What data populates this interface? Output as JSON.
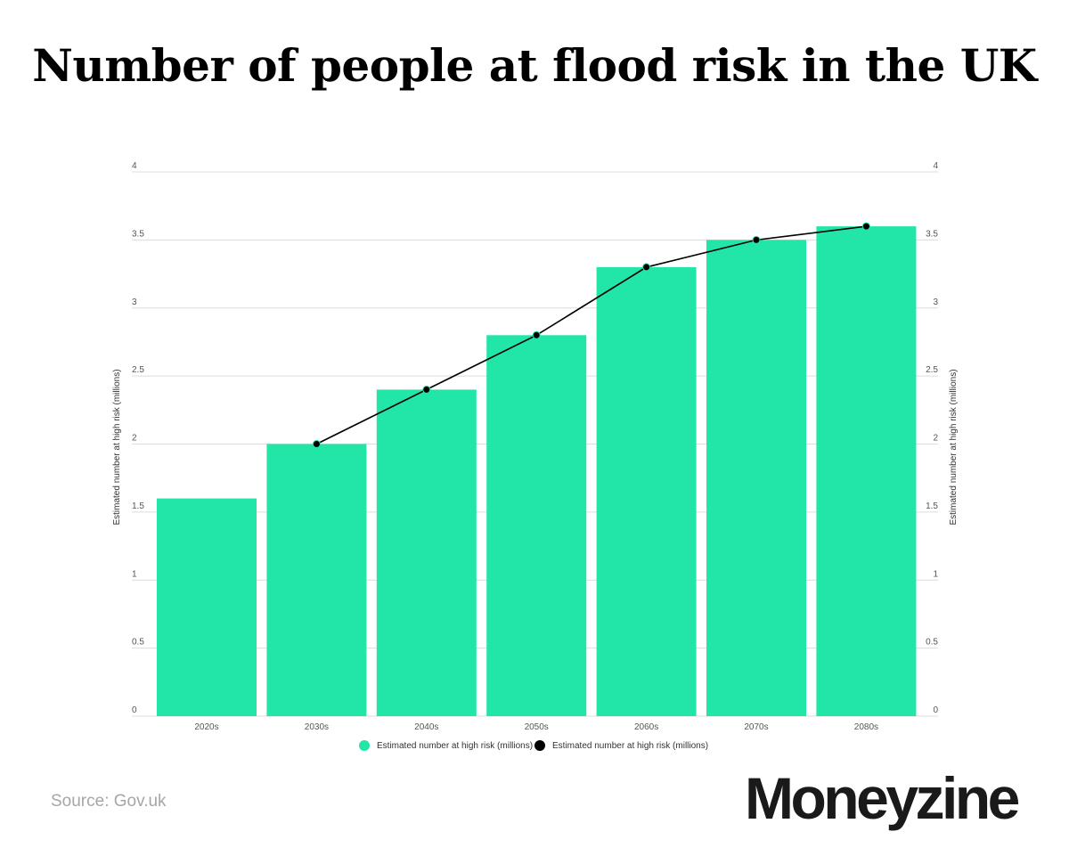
{
  "page": {
    "title": "Number of people at flood risk in the UK",
    "source": "Source: Gov.uk",
    "brand": "Moneyzine"
  },
  "chart_data": {
    "type": "bar",
    "categories": [
      "2020s",
      "2030s",
      "2040s",
      "2050s",
      "2060s",
      "2070s",
      "2080s"
    ],
    "series": [
      {
        "name": "Estimated number at high risk (millions)",
        "kind": "bar",
        "color": "#22e5a8",
        "values": [
          1.6,
          2.0,
          2.4,
          2.8,
          3.3,
          3.5,
          3.6
        ]
      },
      {
        "name": "Estimated number at high risk (millions)",
        "kind": "line",
        "color": "#000000",
        "values": [
          null,
          2.0,
          2.4,
          2.8,
          3.3,
          3.5,
          3.6
        ]
      }
    ],
    "ylabel_left": "Estimated number at high risk (millions)",
    "ylabel_right": "Estimated number at high risk (millions)",
    "yticks": [
      "0",
      "0.5",
      "1",
      "1.5",
      "2",
      "2.5",
      "3",
      "3.5",
      "4"
    ],
    "ylim": [
      0,
      4
    ],
    "grid": true,
    "legend_position": "bottom"
  }
}
